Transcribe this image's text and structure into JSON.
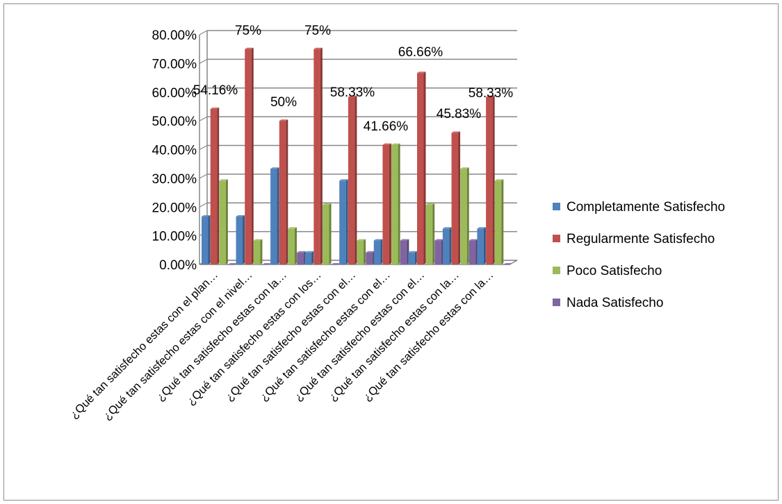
{
  "chart_data": {
    "type": "bar",
    "title": "",
    "xlabel": "",
    "ylabel": "",
    "ylim": [
      0,
      0.8
    ],
    "yticks": [
      "0.00%",
      "10.00%",
      "20.00%",
      "30.00%",
      "40.00%",
      "50.00%",
      "60.00%",
      "70.00%",
      "80.00%"
    ],
    "grid": true,
    "legend_position": "right",
    "categories": [
      "¿Qué tan satisfecho estas con el plan…",
      "¿Qué tan satisfecho estas con el nivel…",
      "¿Qué tan satisfecho estas con la…",
      "¿Qué tan satisfecho estas con los…",
      "¿Qué tan satisfecho estas con el…",
      "¿Qué tan satisfecho estas con el…",
      "¿Qué tan satisfecho estas con el…",
      "¿Qué tan satisfecho estas con la…",
      "¿Qué tan satisfecho estas con la…"
    ],
    "series": [
      {
        "name": "Completamente Satisfecho",
        "color": "#4f81bd",
        "values": [
          0.1667,
          0.1667,
          0.3333,
          0.0417,
          0.2917,
          0.0833,
          0.0417,
          0.125,
          0.125
        ]
      },
      {
        "name": "Regularmente Satisfecho",
        "color": "#c0504d",
        "values": [
          0.5416,
          0.75,
          0.5,
          0.75,
          0.5833,
          0.4166,
          0.6666,
          0.4583,
          0.5833
        ]
      },
      {
        "name": "Poco Satisfecho",
        "color": "#9bbb59",
        "values": [
          0.2917,
          0.0833,
          0.125,
          0.2083,
          0.0833,
          0.4167,
          0.2083,
          0.3333,
          0.2917
        ]
      },
      {
        "name": "Nada Satisfecho",
        "color": "#8064a2",
        "values": [
          0.0,
          0.0,
          0.0417,
          0.0,
          0.0417,
          0.0833,
          0.0833,
          0.0833,
          0.0
        ]
      }
    ],
    "data_labels": [
      "54.16%",
      "75%",
      "50%",
      "75%",
      "58.33%",
      "41.66%",
      "66.66%",
      "45.83%",
      "58.33%"
    ]
  }
}
